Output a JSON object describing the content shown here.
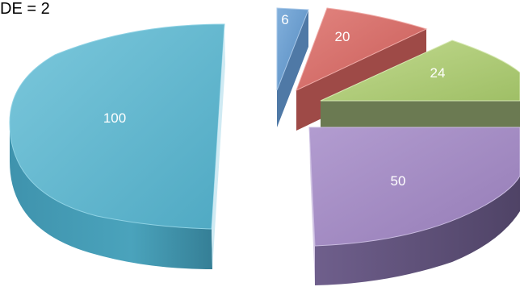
{
  "caption": "DE = 2",
  "chart_data": {
    "type": "pie",
    "style": "3d-exploded",
    "values": [
      100,
      6,
      20,
      24,
      50
    ],
    "labels": [
      "100",
      "6",
      "20",
      "24",
      "50"
    ],
    "colors": [
      "#5fb7cf",
      "#6b9fd0",
      "#d8716d",
      "#b3cf7c",
      "#a58dc2"
    ],
    "label_color": "#ffffff"
  }
}
